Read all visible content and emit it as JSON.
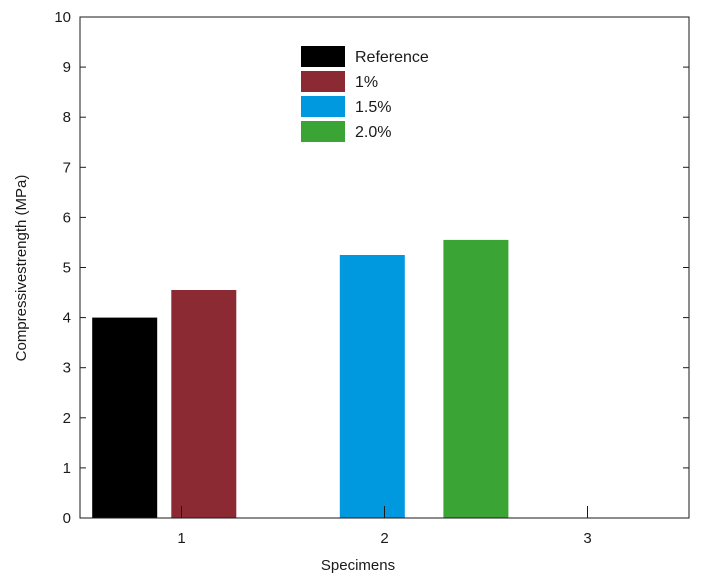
{
  "chart_data": {
    "type": "bar",
    "title": "",
    "xlabel": "Specimens",
    "ylabel": "Compressivestrength (MPa)",
    "ylim": [
      0,
      10
    ],
    "yticks": [
      "0",
      "1",
      "2",
      "3",
      "4",
      "5",
      "6",
      "7",
      "8",
      "9",
      "10"
    ],
    "xticks": [
      "1",
      "2",
      "3"
    ],
    "xlim": [
      0.5,
      3.5
    ],
    "series": [
      {
        "name": "Reference",
        "color": "#000000",
        "x": 0.72,
        "value": 4.0
      },
      {
        "name": "1%",
        "color": "#8b2a32",
        "x": 1.11,
        "value": 4.55
      },
      {
        "name": "1.5%",
        "color": "#0099e0",
        "x": 1.94,
        "value": 5.25
      },
      {
        "name": "2.0%",
        "color": "#3aa535",
        "x": 2.45,
        "value": 5.55
      }
    ],
    "legend_position": "top-center"
  }
}
